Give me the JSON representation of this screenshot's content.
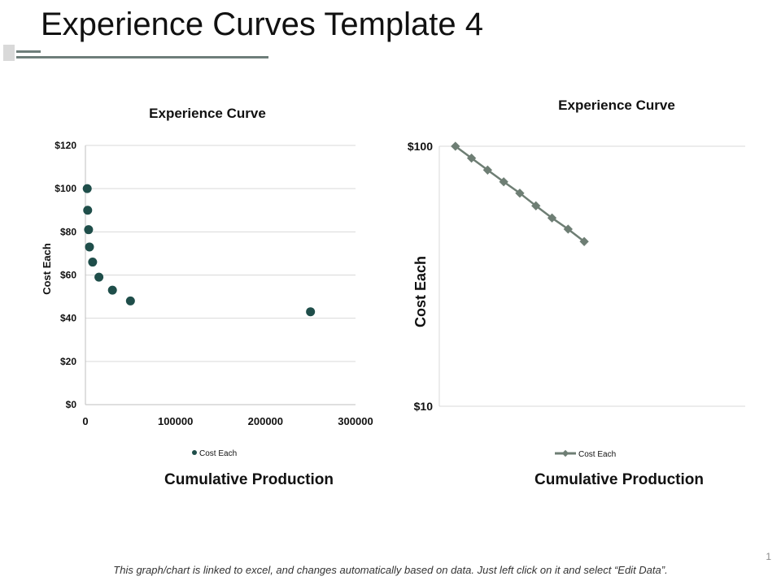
{
  "slide": {
    "title": "Experience Curves Template 4",
    "footer": "This graph/chart is linked to excel, and changes automatically based on data.  Just left click on it and select “Edit Data”.",
    "page_number": "1"
  },
  "chart_data": [
    {
      "type": "scatter",
      "title": "Experience Curve",
      "xlabel": "Cumulative Production",
      "ylabel": "Cost Each",
      "xlim": [
        0,
        300000
      ],
      "ylim": [
        0,
        120
      ],
      "x_ticks": [
        0,
        100000,
        200000,
        300000
      ],
      "x_tick_labels": [
        "0",
        "100000",
        "200000",
        "300000"
      ],
      "y_ticks": [
        0,
        20,
        40,
        60,
        80,
        100,
        120
      ],
      "y_tick_labels": [
        "$0",
        "$20",
        "$40",
        "$60",
        "$80",
        "$100",
        "$120"
      ],
      "grid": true,
      "legend": "bottom",
      "series": [
        {
          "name": "Cost Each",
          "color": "#1f4e4a",
          "x": [
            2000,
            2500,
            3500,
            4500,
            8000,
            15000,
            30000,
            50000,
            250000
          ],
          "y": [
            100,
            90,
            81,
            73,
            66,
            59,
            53,
            48,
            43
          ]
        }
      ]
    },
    {
      "type": "line",
      "title": "Experience Curve",
      "xlabel": "Cumulative Production",
      "ylabel": "Cost Each",
      "yscale": "log",
      "ylim": [
        10,
        100
      ],
      "y_ticks": [
        10,
        100
      ],
      "y_tick_labels": [
        "$10",
        "$100"
      ],
      "xlim": [
        0,
        19
      ],
      "grid": true,
      "legend": "bottom",
      "series": [
        {
          "name": "Cost Each",
          "color": "#6e7e74",
          "x": [
            1,
            2,
            3,
            4,
            5,
            6,
            7,
            8,
            9
          ],
          "y": [
            100,
            90,
            81,
            73,
            66,
            59,
            53,
            48,
            43
          ]
        }
      ]
    }
  ]
}
